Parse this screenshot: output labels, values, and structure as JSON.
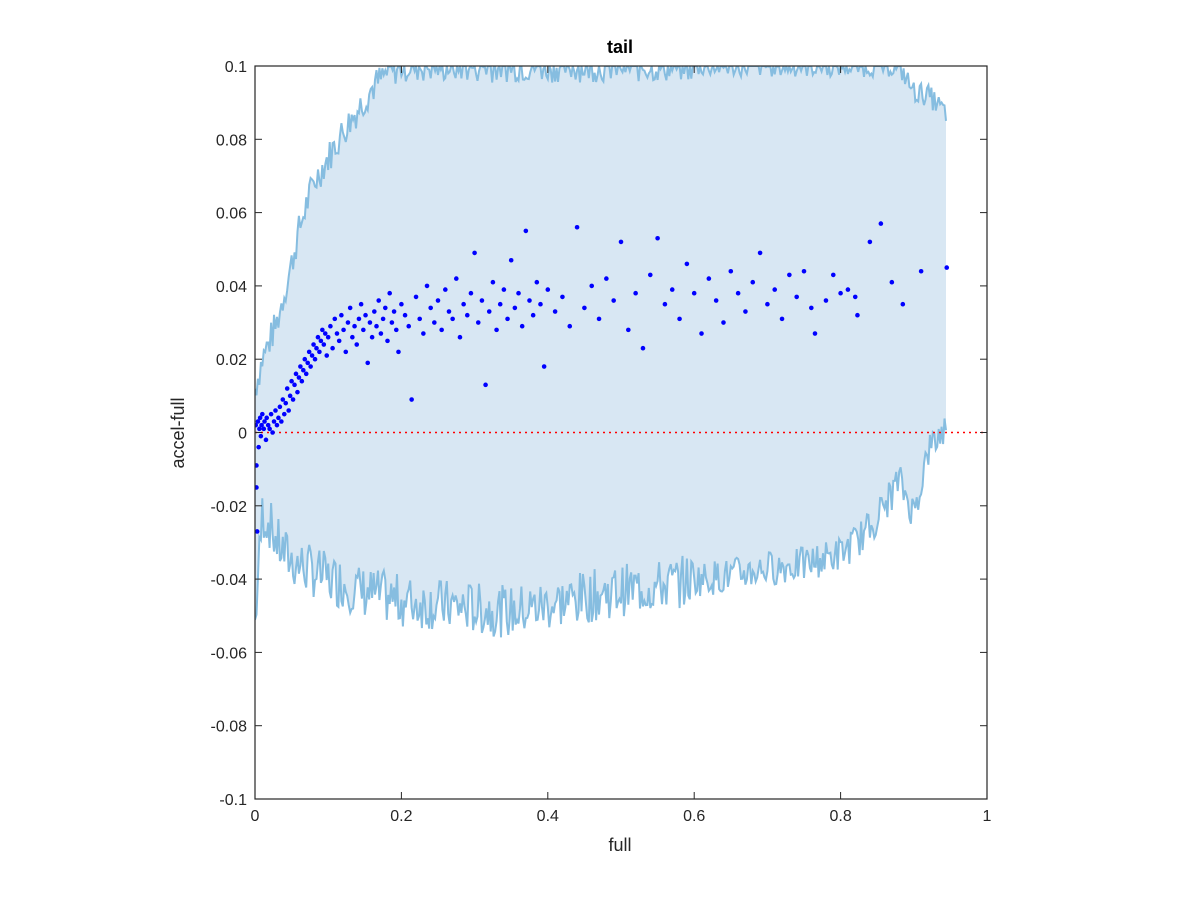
{
  "chart_data": {
    "type": "scatter",
    "title": "tail",
    "xlabel": "full",
    "ylabel": "accel-full",
    "xlim": [
      0,
      1
    ],
    "ylim": [
      -0.1,
      0.1
    ],
    "xticks": [
      0,
      0.2,
      0.4,
      0.6,
      0.8,
      1
    ],
    "xtick_labels": [
      "0",
      "0.2",
      "0.4",
      "0.6",
      "0.8",
      "1"
    ],
    "yticks": [
      -0.1,
      -0.08,
      -0.06,
      -0.04,
      -0.02,
      0,
      0.02,
      0.04,
      0.06,
      0.08,
      0.1
    ],
    "ytick_labels": [
      "-0.1",
      "-0.08",
      "-0.06",
      "-0.04",
      "-0.02",
      "0",
      "0.02",
      "0.04",
      "0.06",
      "0.08",
      "0.1"
    ],
    "grid": false,
    "reference_line": {
      "y": 0,
      "style": "dotted",
      "color": "#ff0000"
    },
    "colors": {
      "band_fill": "#d8e7f3",
      "band_line": "#86bde0",
      "points": "#0000ff"
    },
    "band": {
      "x": [
        0,
        0.01,
        0.02,
        0.03,
        0.04,
        0.05,
        0.06,
        0.07,
        0.08,
        0.1,
        0.12,
        0.14,
        0.16,
        0.18,
        0.2,
        0.25,
        0.3,
        0.35,
        0.4,
        0.45,
        0.5,
        0.55,
        0.6,
        0.65,
        0.7,
        0.75,
        0.8,
        0.82,
        0.84,
        0.86,
        0.88,
        0.9,
        0.92,
        0.945
      ],
      "upper": [
        0.012,
        0.02,
        0.025,
        0.03,
        0.038,
        0.046,
        0.055,
        0.062,
        0.068,
        0.075,
        0.082,
        0.088,
        0.094,
        0.098,
        0.1,
        0.1,
        0.1,
        0.1,
        0.1,
        0.1,
        0.1,
        0.1,
        0.1,
        0.1,
        0.1,
        0.1,
        0.1,
        0.1,
        0.1,
        0.1,
        0.1,
        0.093,
        0.092,
        0.087
      ],
      "lower": [
        -0.052,
        -0.022,
        -0.025,
        -0.03,
        -0.033,
        -0.035,
        -0.036,
        -0.037,
        -0.038,
        -0.04,
        -0.041,
        -0.043,
        -0.044,
        -0.045,
        -0.046,
        -0.047,
        -0.048,
        -0.049,
        -0.047,
        -0.045,
        -0.043,
        -0.042,
        -0.04,
        -0.039,
        -0.037,
        -0.036,
        -0.033,
        -0.03,
        -0.026,
        -0.02,
        -0.013,
        -0.022,
        -0.005,
        0.002
      ]
    },
    "points": [
      [
        0.001,
        0.002
      ],
      [
        0.002,
        -0.009
      ],
      [
        0.002,
        -0.015
      ],
      [
        0.003,
        -0.027
      ],
      [
        0.004,
        0.003
      ],
      [
        0.005,
        -0.004
      ],
      [
        0.006,
        0.001
      ],
      [
        0.007,
        0.004
      ],
      [
        0.008,
        -0.001
      ],
      [
        0.009,
        0.002
      ],
      [
        0.01,
        0.005
      ],
      [
        0.012,
        0.001
      ],
      [
        0.013,
        0.003
      ],
      [
        0.015,
        -0.002
      ],
      [
        0.016,
        0.004
      ],
      [
        0.018,
        0.002
      ],
      [
        0.02,
        0.001
      ],
      [
        0.022,
        0.005
      ],
      [
        0.024,
        0.0
      ],
      [
        0.026,
        0.003
      ],
      [
        0.028,
        0.006
      ],
      [
        0.03,
        0.002
      ],
      [
        0.032,
        0.004
      ],
      [
        0.034,
        0.007
      ],
      [
        0.036,
        0.003
      ],
      [
        0.038,
        0.009
      ],
      [
        0.04,
        0.005
      ],
      [
        0.042,
        0.008
      ],
      [
        0.044,
        0.012
      ],
      [
        0.046,
        0.006
      ],
      [
        0.048,
        0.01
      ],
      [
        0.05,
        0.014
      ],
      [
        0.052,
        0.009
      ],
      [
        0.054,
        0.013
      ],
      [
        0.056,
        0.016
      ],
      [
        0.058,
        0.011
      ],
      [
        0.06,
        0.015
      ],
      [
        0.062,
        0.018
      ],
      [
        0.064,
        0.014
      ],
      [
        0.066,
        0.017
      ],
      [
        0.068,
        0.02
      ],
      [
        0.07,
        0.016
      ],
      [
        0.072,
        0.019
      ],
      [
        0.074,
        0.022
      ],
      [
        0.076,
        0.018
      ],
      [
        0.078,
        0.021
      ],
      [
        0.08,
        0.024
      ],
      [
        0.082,
        0.02
      ],
      [
        0.084,
        0.023
      ],
      [
        0.086,
        0.026
      ],
      [
        0.088,
        0.022
      ],
      [
        0.09,
        0.025
      ],
      [
        0.092,
        0.028
      ],
      [
        0.094,
        0.024
      ],
      [
        0.096,
        0.027
      ],
      [
        0.098,
        0.021
      ],
      [
        0.1,
        0.026
      ],
      [
        0.103,
        0.029
      ],
      [
        0.106,
        0.023
      ],
      [
        0.109,
        0.031
      ],
      [
        0.112,
        0.027
      ],
      [
        0.115,
        0.025
      ],
      [
        0.118,
        0.032
      ],
      [
        0.121,
        0.028
      ],
      [
        0.124,
        0.022
      ],
      [
        0.127,
        0.03
      ],
      [
        0.13,
        0.034
      ],
      [
        0.133,
        0.026
      ],
      [
        0.136,
        0.029
      ],
      [
        0.139,
        0.024
      ],
      [
        0.142,
        0.031
      ],
      [
        0.145,
        0.035
      ],
      [
        0.148,
        0.028
      ],
      [
        0.151,
        0.032
      ],
      [
        0.154,
        0.019
      ],
      [
        0.157,
        0.03
      ],
      [
        0.16,
        0.026
      ],
      [
        0.163,
        0.033
      ],
      [
        0.166,
        0.029
      ],
      [
        0.169,
        0.036
      ],
      [
        0.172,
        0.027
      ],
      [
        0.175,
        0.031
      ],
      [
        0.178,
        0.034
      ],
      [
        0.181,
        0.025
      ],
      [
        0.184,
        0.038
      ],
      [
        0.187,
        0.03
      ],
      [
        0.19,
        0.033
      ],
      [
        0.193,
        0.028
      ],
      [
        0.196,
        0.022
      ],
      [
        0.2,
        0.035
      ],
      [
        0.205,
        0.032
      ],
      [
        0.21,
        0.029
      ],
      [
        0.214,
        0.009
      ],
      [
        0.22,
        0.037
      ],
      [
        0.225,
        0.031
      ],
      [
        0.23,
        0.027
      ],
      [
        0.235,
        0.04
      ],
      [
        0.24,
        0.034
      ],
      [
        0.245,
        0.03
      ],
      [
        0.25,
        0.036
      ],
      [
        0.255,
        0.028
      ],
      [
        0.26,
        0.039
      ],
      [
        0.265,
        0.033
      ],
      [
        0.27,
        0.031
      ],
      [
        0.275,
        0.042
      ],
      [
        0.28,
        0.026
      ],
      [
        0.285,
        0.035
      ],
      [
        0.29,
        0.032
      ],
      [
        0.295,
        0.038
      ],
      [
        0.3,
        0.049
      ],
      [
        0.305,
        0.03
      ],
      [
        0.31,
        0.036
      ],
      [
        0.315,
        0.013
      ],
      [
        0.32,
        0.033
      ],
      [
        0.325,
        0.041
      ],
      [
        0.33,
        0.028
      ],
      [
        0.335,
        0.035
      ],
      [
        0.34,
        0.039
      ],
      [
        0.345,
        0.031
      ],
      [
        0.35,
        0.047
      ],
      [
        0.355,
        0.034
      ],
      [
        0.36,
        0.038
      ],
      [
        0.365,
        0.029
      ],
      [
        0.37,
        0.055
      ],
      [
        0.375,
        0.036
      ],
      [
        0.38,
        0.032
      ],
      [
        0.385,
        0.041
      ],
      [
        0.39,
        0.035
      ],
      [
        0.395,
        0.018
      ],
      [
        0.4,
        0.039
      ],
      [
        0.41,
        0.033
      ],
      [
        0.42,
        0.037
      ],
      [
        0.43,
        0.029
      ],
      [
        0.44,
        0.056
      ],
      [
        0.45,
        0.034
      ],
      [
        0.46,
        0.04
      ],
      [
        0.47,
        0.031
      ],
      [
        0.48,
        0.042
      ],
      [
        0.49,
        0.036
      ],
      [
        0.5,
        0.052
      ],
      [
        0.51,
        0.028
      ],
      [
        0.52,
        0.038
      ],
      [
        0.53,
        0.023
      ],
      [
        0.54,
        0.043
      ],
      [
        0.55,
        0.053
      ],
      [
        0.56,
        0.035
      ],
      [
        0.57,
        0.039
      ],
      [
        0.58,
        0.031
      ],
      [
        0.59,
        0.046
      ],
      [
        0.6,
        0.038
      ],
      [
        0.61,
        0.027
      ],
      [
        0.62,
        0.042
      ],
      [
        0.63,
        0.036
      ],
      [
        0.64,
        0.03
      ],
      [
        0.65,
        0.044
      ],
      [
        0.66,
        0.038
      ],
      [
        0.67,
        0.033
      ],
      [
        0.68,
        0.041
      ],
      [
        0.69,
        0.049
      ],
      [
        0.7,
        0.035
      ],
      [
        0.71,
        0.039
      ],
      [
        0.72,
        0.031
      ],
      [
        0.73,
        0.043
      ],
      [
        0.74,
        0.037
      ],
      [
        0.75,
        0.044
      ],
      [
        0.76,
        0.034
      ],
      [
        0.765,
        0.027
      ],
      [
        0.78,
        0.036
      ],
      [
        0.79,
        0.043
      ],
      [
        0.8,
        0.038
      ],
      [
        0.81,
        0.039
      ],
      [
        0.82,
        0.037
      ],
      [
        0.823,
        0.032
      ],
      [
        0.84,
        0.052
      ],
      [
        0.855,
        0.057
      ],
      [
        0.87,
        0.041
      ],
      [
        0.885,
        0.035
      ],
      [
        0.91,
        0.044
      ],
      [
        0.945,
        0.045
      ]
    ]
  }
}
